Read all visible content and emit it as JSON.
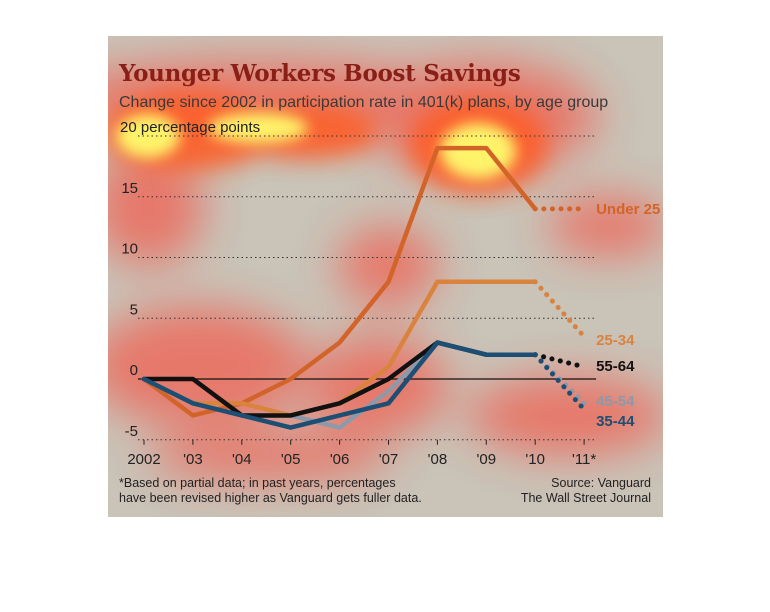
{
  "title": "Younger Workers Boost Savings",
  "subtitle": "Change since 2002 in participation rate in 401(k) plans, by age group",
  "footnote_line1": "*Based on partial data; in past years, percentages",
  "footnote_line2": "have been revised higher as Vanguard gets fuller data.",
  "source_line1": "Source: Vanguard",
  "source_line2": "The Wall Street Journal",
  "y_unit_label": "20 percentage points",
  "colors": {
    "background": "#c9c3b8",
    "title": "#8a1f17",
    "heat_yellow": "#fff36a",
    "heat_red": "#ff3a2a"
  },
  "chart_data": {
    "type": "line",
    "title": "Younger Workers Boost Savings",
    "subtitle": "Change since 2002 in participation rate in 401(k) plans, by age group",
    "categories": [
      "2002",
      "'03",
      "'04",
      "'05",
      "'06",
      "'07",
      "'08",
      "'09",
      "'10",
      "'11*"
    ],
    "ylim": [
      -5,
      20
    ],
    "yticks": [
      "-5",
      "0",
      "5",
      "10",
      "15",
      "20"
    ],
    "ytick_values": [
      -5,
      0,
      5,
      10,
      15,
      20
    ],
    "grid": "dotted horizontal",
    "projected_segment": "'10 to '11* drawn dotted",
    "series": [
      {
        "name": "Under 25",
        "color": "#d2642a",
        "values": [
          0,
          -3,
          -2,
          0,
          3,
          8,
          19,
          19,
          14,
          14
        ]
      },
      {
        "name": "25-34",
        "color": "#d9833f",
        "values": [
          0,
          -2,
          -2,
          -3,
          -2,
          1,
          8,
          8,
          8,
          3.5
        ]
      },
      {
        "name": "55-64",
        "color": "#111111",
        "values": [
          0,
          0,
          -3,
          -3,
          -2,
          0,
          3,
          2,
          2,
          1
        ]
      },
      {
        "name": "45-54",
        "color": "#8d99a9",
        "values": [
          0,
          -2,
          -3,
          -3,
          -4,
          -1,
          3,
          2,
          2,
          -2
        ]
      },
      {
        "name": "35-44",
        "color": "#1d4e74",
        "values": [
          0,
          -2,
          -3,
          -4,
          -3,
          -2,
          3,
          2,
          2,
          -2.5
        ]
      }
    ]
  }
}
